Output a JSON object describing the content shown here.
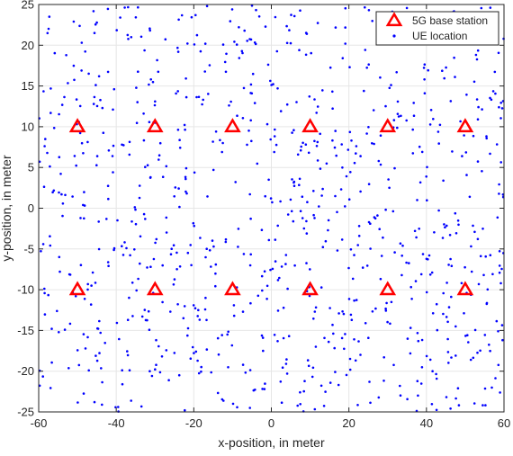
{
  "chart_data": {
    "type": "scatter",
    "title": "",
    "xlabel": "x-position, in meter",
    "ylabel": "y-position, in meter",
    "xlim": [
      -60,
      60
    ],
    "ylim": [
      -25,
      25
    ],
    "x_ticks": [
      -60,
      -40,
      -20,
      0,
      20,
      40,
      60
    ],
    "y_ticks": [
      -25,
      -20,
      -15,
      -10,
      -5,
      0,
      5,
      10,
      15,
      20,
      25
    ],
    "x_tick_labels": [
      "-60",
      "-40",
      "-20",
      "0",
      "20",
      "40",
      "60"
    ],
    "y_tick_labels": [
      "-25",
      "-20",
      "-15",
      "-10",
      "-5",
      "0",
      "5",
      "10",
      "15",
      "20",
      "25"
    ],
    "grid": true,
    "legend_position": "top-right",
    "colors": {
      "base_station": "#ff0000",
      "ue": "#0000ff",
      "grid": "#e6e6e6",
      "axes": "#262626"
    },
    "series": [
      {
        "name": "5G base station",
        "marker": "triangle",
        "points": [
          [
            -50,
            10
          ],
          [
            -30,
            10
          ],
          [
            -10,
            10
          ],
          [
            10,
            10
          ],
          [
            30,
            10
          ],
          [
            50,
            10
          ],
          [
            -50,
            -10
          ],
          [
            -30,
            -10
          ],
          [
            -10,
            -10
          ],
          [
            10,
            -10
          ],
          [
            30,
            -10
          ],
          [
            50,
            -10
          ]
        ]
      },
      {
        "name": "UE location",
        "marker": "dot",
        "distribution": "uniform random",
        "count": 900,
        "x_range": [
          -60,
          60
        ],
        "y_range": [
          -25,
          25
        ]
      }
    ]
  }
}
